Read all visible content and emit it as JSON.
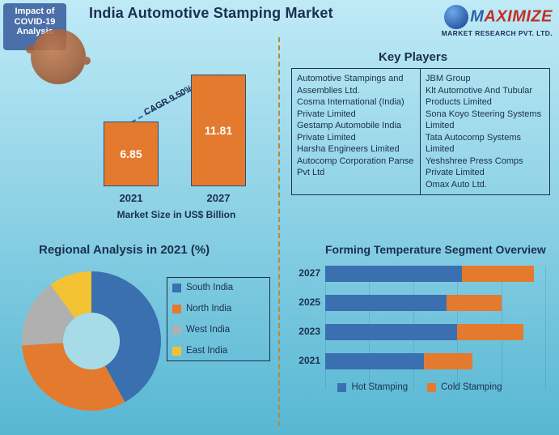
{
  "background_gradient": {
    "from": "#bfeaf6",
    "to": "#57b7d3"
  },
  "badge": {
    "line1": "Impact of",
    "line2": "COVID-19",
    "line3": "Analysis"
  },
  "title": "India Automotive Stamping Market",
  "logo": {
    "text1": "M",
    "text2": "AXIMIZE",
    "sub": "MARKET RESEARCH PVT. LTD."
  },
  "bar_chart": {
    "xaxis_title": "Market Size in US$ Billion",
    "cagr_label": "CAGR 9.50%",
    "bar_color": "#e37a2e",
    "bar_border": "#2f4e7a",
    "max": 12,
    "bars": [
      {
        "label": "2021",
        "value": 6.85,
        "value_text": "6.85"
      },
      {
        "label": "2027",
        "value": 11.81,
        "value_text": "11.81"
      }
    ]
  },
  "regional": {
    "title": "Regional Analysis in 2021 (%)",
    "hole_color": "#a8dbe8",
    "slices": [
      {
        "label": "South India",
        "color": "#3a6fb0",
        "pct": 42
      },
      {
        "label": "North India",
        "color": "#e37a2e",
        "pct": 32
      },
      {
        "label": "West India",
        "color": "#b0b0b0",
        "pct": 16
      },
      {
        "label": "East India",
        "color": "#f2c233",
        "pct": 10
      }
    ]
  },
  "key_players": {
    "title": "Key Players",
    "col1": [
      "Automotive Stampings and Assemblies Ltd.",
      " Cosma International (India) Private Limited",
      " Gestamp Automobile India Private Limited",
      " Harsha Engineers Limited",
      " Autocomp Corporation Panse Pvt Ltd"
    ],
    "col2": [
      "JBM Group",
      " Klt Automotive And Tubular Products Limited",
      " Sona Koyo Steering Systems Limited",
      " Tata Autocomp Systems Limited",
      " Yeshshree Press Comps Private Limited",
      " Omax Auto Ltd."
    ]
  },
  "forming": {
    "title": "Forming Temperature Segment Overview",
    "max": 100,
    "series": [
      {
        "label": "Hot Stamping",
        "color": "#3a6fb0"
      },
      {
        "label": "Cold Stamping",
        "color": "#e37a2e"
      }
    ],
    "rows": [
      {
        "ylabel": "2027",
        "hot": 62,
        "cold": 33
      },
      {
        "ylabel": "2025",
        "hot": 55,
        "cold": 25
      },
      {
        "ylabel": "2023",
        "hot": 60,
        "cold": 30
      },
      {
        "ylabel": "2021",
        "hot": 45,
        "cold": 22
      }
    ],
    "grid_ticks": [
      0,
      20,
      40,
      60,
      80,
      100
    ]
  }
}
